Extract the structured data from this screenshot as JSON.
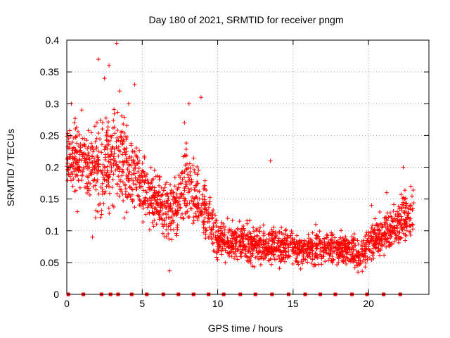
{
  "chart_data": {
    "type": "scatter",
    "title": "Day 180 of 2021, SRMTID for receiver pngm",
    "xlabel": "GPS time / hours",
    "ylabel": "SRMTID / TECUs",
    "xlim": [
      0,
      24
    ],
    "ylim": [
      0,
      0.4
    ],
    "x_ticks": [
      0,
      5,
      10,
      15,
      20
    ],
    "x_tick_labels": [
      "0",
      "5",
      "10",
      "15",
      "20"
    ],
    "y_ticks": [
      0,
      0.05,
      0.1,
      0.15,
      0.2,
      0.25,
      0.3,
      0.35,
      0.4
    ],
    "y_tick_labels": [
      "0",
      "0.05",
      "0.1",
      "0.15",
      "0.2",
      "0.25",
      "0.3",
      "0.35",
      "0.4"
    ],
    "grid": true,
    "marker": "+",
    "color": "#ff0000",
    "trend": [
      {
        "x": 0.0,
        "y": 0.22,
        "spread": 0.05
      },
      {
        "x": 1.0,
        "y": 0.21,
        "spread": 0.06
      },
      {
        "x": 2.0,
        "y": 0.19,
        "spread": 0.07
      },
      {
        "x": 3.0,
        "y": 0.22,
        "spread": 0.08
      },
      {
        "x": 4.0,
        "y": 0.2,
        "spread": 0.07
      },
      {
        "x": 5.0,
        "y": 0.17,
        "spread": 0.05
      },
      {
        "x": 6.0,
        "y": 0.14,
        "spread": 0.045
      },
      {
        "x": 7.0,
        "y": 0.13,
        "spread": 0.045
      },
      {
        "x": 8.0,
        "y": 0.17,
        "spread": 0.06
      },
      {
        "x": 9.0,
        "y": 0.14,
        "spread": 0.05
      },
      {
        "x": 10.0,
        "y": 0.085,
        "spread": 0.03
      },
      {
        "x": 12.0,
        "y": 0.08,
        "spread": 0.03
      },
      {
        "x": 14.0,
        "y": 0.075,
        "spread": 0.028
      },
      {
        "x": 16.0,
        "y": 0.07,
        "spread": 0.025
      },
      {
        "x": 18.0,
        "y": 0.075,
        "spread": 0.025
      },
      {
        "x": 19.5,
        "y": 0.065,
        "spread": 0.025
      },
      {
        "x": 20.5,
        "y": 0.09,
        "spread": 0.03
      },
      {
        "x": 22.0,
        "y": 0.11,
        "spread": 0.04
      },
      {
        "x": 23.0,
        "y": 0.13,
        "spread": 0.04
      }
    ],
    "sample_points": [
      [
        0.1,
        0.23
      ],
      [
        0.3,
        0.3
      ],
      [
        0.5,
        0.27
      ],
      [
        0.7,
        0.13
      ],
      [
        1.0,
        0.29
      ],
      [
        1.5,
        0.2
      ],
      [
        1.7,
        0.09
      ],
      [
        2.0,
        0.27
      ],
      [
        2.1,
        0.37
      ],
      [
        2.5,
        0.34
      ],
      [
        2.8,
        0.36
      ],
      [
        3.3,
        0.395
      ],
      [
        3.5,
        0.32
      ],
      [
        3.8,
        0.12
      ],
      [
        4.1,
        0.3
      ],
      [
        4.5,
        0.33
      ],
      [
        4.8,
        0.21
      ],
      [
        5.3,
        0.16
      ],
      [
        6.0,
        0.13
      ],
      [
        6.8,
        0.037
      ],
      [
        7.8,
        0.27
      ],
      [
        8.1,
        0.3
      ],
      [
        8.9,
        0.31
      ],
      [
        9.4,
        0.12
      ],
      [
        10.5,
        0.05
      ],
      [
        11.5,
        0.075
      ],
      [
        12.5,
        0.08
      ],
      [
        13.5,
        0.21
      ],
      [
        14.0,
        0.06
      ],
      [
        15.5,
        0.04
      ],
      [
        16.5,
        0.11
      ],
      [
        18.0,
        0.05
      ],
      [
        19.3,
        0.035
      ],
      [
        20.2,
        0.14
      ],
      [
        21.2,
        0.16
      ],
      [
        22.3,
        0.2
      ],
      [
        22.8,
        0.17
      ]
    ],
    "zero_markers_x": [
      0.1,
      1.1,
      2.3,
      2.9,
      3.4,
      4.3,
      5.3,
      6.4,
      7.4,
      8.4,
      9.4,
      10.4,
      11.5,
      12.5,
      13.6,
      14.7,
      15.8,
      16.8,
      17.8,
      18.9,
      19.9,
      21.0,
      22.1
    ]
  }
}
